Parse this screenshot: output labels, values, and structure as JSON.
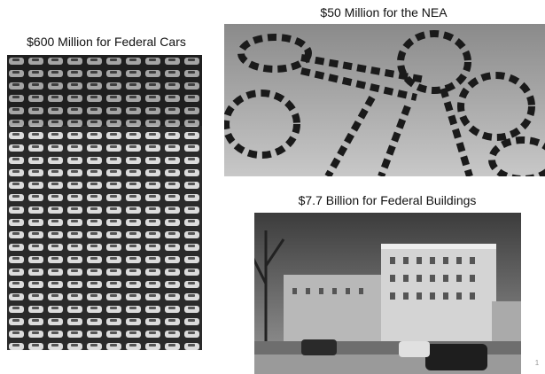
{
  "panels": [
    {
      "caption": "$600 Million for Federal Cars"
    },
    {
      "caption": "$50 Million for the NEA"
    },
    {
      "caption": "$7.7 Billion for Federal Buildings"
    }
  ],
  "slide_number": "1"
}
